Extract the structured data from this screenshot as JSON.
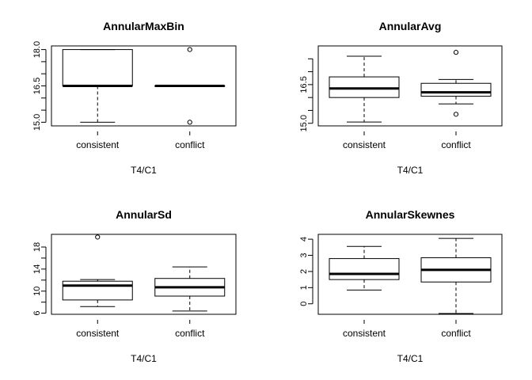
{
  "chart_data": [
    {
      "type": "boxplot",
      "title": "AnnularMaxBin",
      "xlabel": "T4/C1",
      "ylabel": "",
      "ylim": [
        14.85,
        18.15
      ],
      "yticks": [
        15.0,
        15.5,
        16.0,
        16.5,
        17.0,
        17.5,
        18.0
      ],
      "ytick_labels": [
        "15.0",
        "",
        "",
        "16.5",
        "",
        "",
        "18.0"
      ],
      "categories": [
        "consistent",
        "conflict"
      ],
      "boxes": [
        {
          "name": "consistent",
          "whisker_low": 15.0,
          "q1": 16.5,
          "median": 16.5,
          "q3": 18.0,
          "whisker_high": 18.0,
          "outliers": []
        },
        {
          "name": "conflict",
          "whisker_low": 16.5,
          "q1": 16.5,
          "median": 16.5,
          "q3": 16.5,
          "whisker_high": 16.5,
          "outliers": [
            18.0,
            15.0
          ]
        }
      ]
    },
    {
      "type": "boxplot",
      "title": "AnnularAvg",
      "xlabel": "T4/C1",
      "ylabel": "",
      "ylim": [
        14.9,
        18.0
      ],
      "yticks": [
        15.0,
        15.5,
        16.0,
        16.5,
        17.0,
        17.5
      ],
      "ytick_labels": [
        "15.0",
        "",
        "",
        "16.5",
        "",
        ""
      ],
      "categories": [
        "consistent",
        "conflict"
      ],
      "boxes": [
        {
          "name": "consistent",
          "whisker_low": 15.05,
          "q1": 16.0,
          "median": 16.35,
          "q3": 16.8,
          "whisker_high": 17.6,
          "outliers": []
        },
        {
          "name": "conflict",
          "whisker_low": 15.75,
          "q1": 16.05,
          "median": 16.2,
          "q3": 16.55,
          "whisker_high": 16.7,
          "outliers": [
            17.75,
            15.35
          ]
        }
      ]
    },
    {
      "type": "boxplot",
      "title": "AnnularSd",
      "xlabel": "T4/C1",
      "ylabel": "",
      "ylim": [
        5.8,
        20.3
      ],
      "yticks": [
        6,
        8,
        10,
        12,
        14,
        16,
        18
      ],
      "ytick_labels": [
        "6",
        "",
        "10",
        "",
        "14",
        "",
        "18"
      ],
      "categories": [
        "consistent",
        "conflict"
      ],
      "boxes": [
        {
          "name": "consistent",
          "whisker_low": 7.2,
          "q1": 8.4,
          "median": 11.0,
          "q3": 11.8,
          "whisker_high": 12.1,
          "outliers": [
            19.8
          ]
        },
        {
          "name": "conflict",
          "whisker_low": 6.4,
          "q1": 9.1,
          "median": 10.7,
          "q3": 12.3,
          "whisker_high": 14.4,
          "outliers": []
        }
      ]
    },
    {
      "type": "boxplot",
      "title": "AnnularSkewnes",
      "xlabel": "T4/C1",
      "ylabel": "",
      "ylim": [
        -0.65,
        4.3
      ],
      "yticks": [
        0,
        1,
        2,
        3,
        4
      ],
      "ytick_labels": [
        "0",
        "1",
        "2",
        "3",
        "4"
      ],
      "categories": [
        "consistent",
        "conflict"
      ],
      "boxes": [
        {
          "name": "consistent",
          "whisker_low": 0.85,
          "q1": 1.5,
          "median": 1.85,
          "q3": 2.8,
          "whisker_high": 3.55,
          "outliers": []
        },
        {
          "name": "conflict",
          "whisker_low": -0.6,
          "q1": 1.35,
          "median": 2.1,
          "q3": 2.85,
          "whisker_high": 4.05,
          "outliers": []
        }
      ]
    }
  ]
}
